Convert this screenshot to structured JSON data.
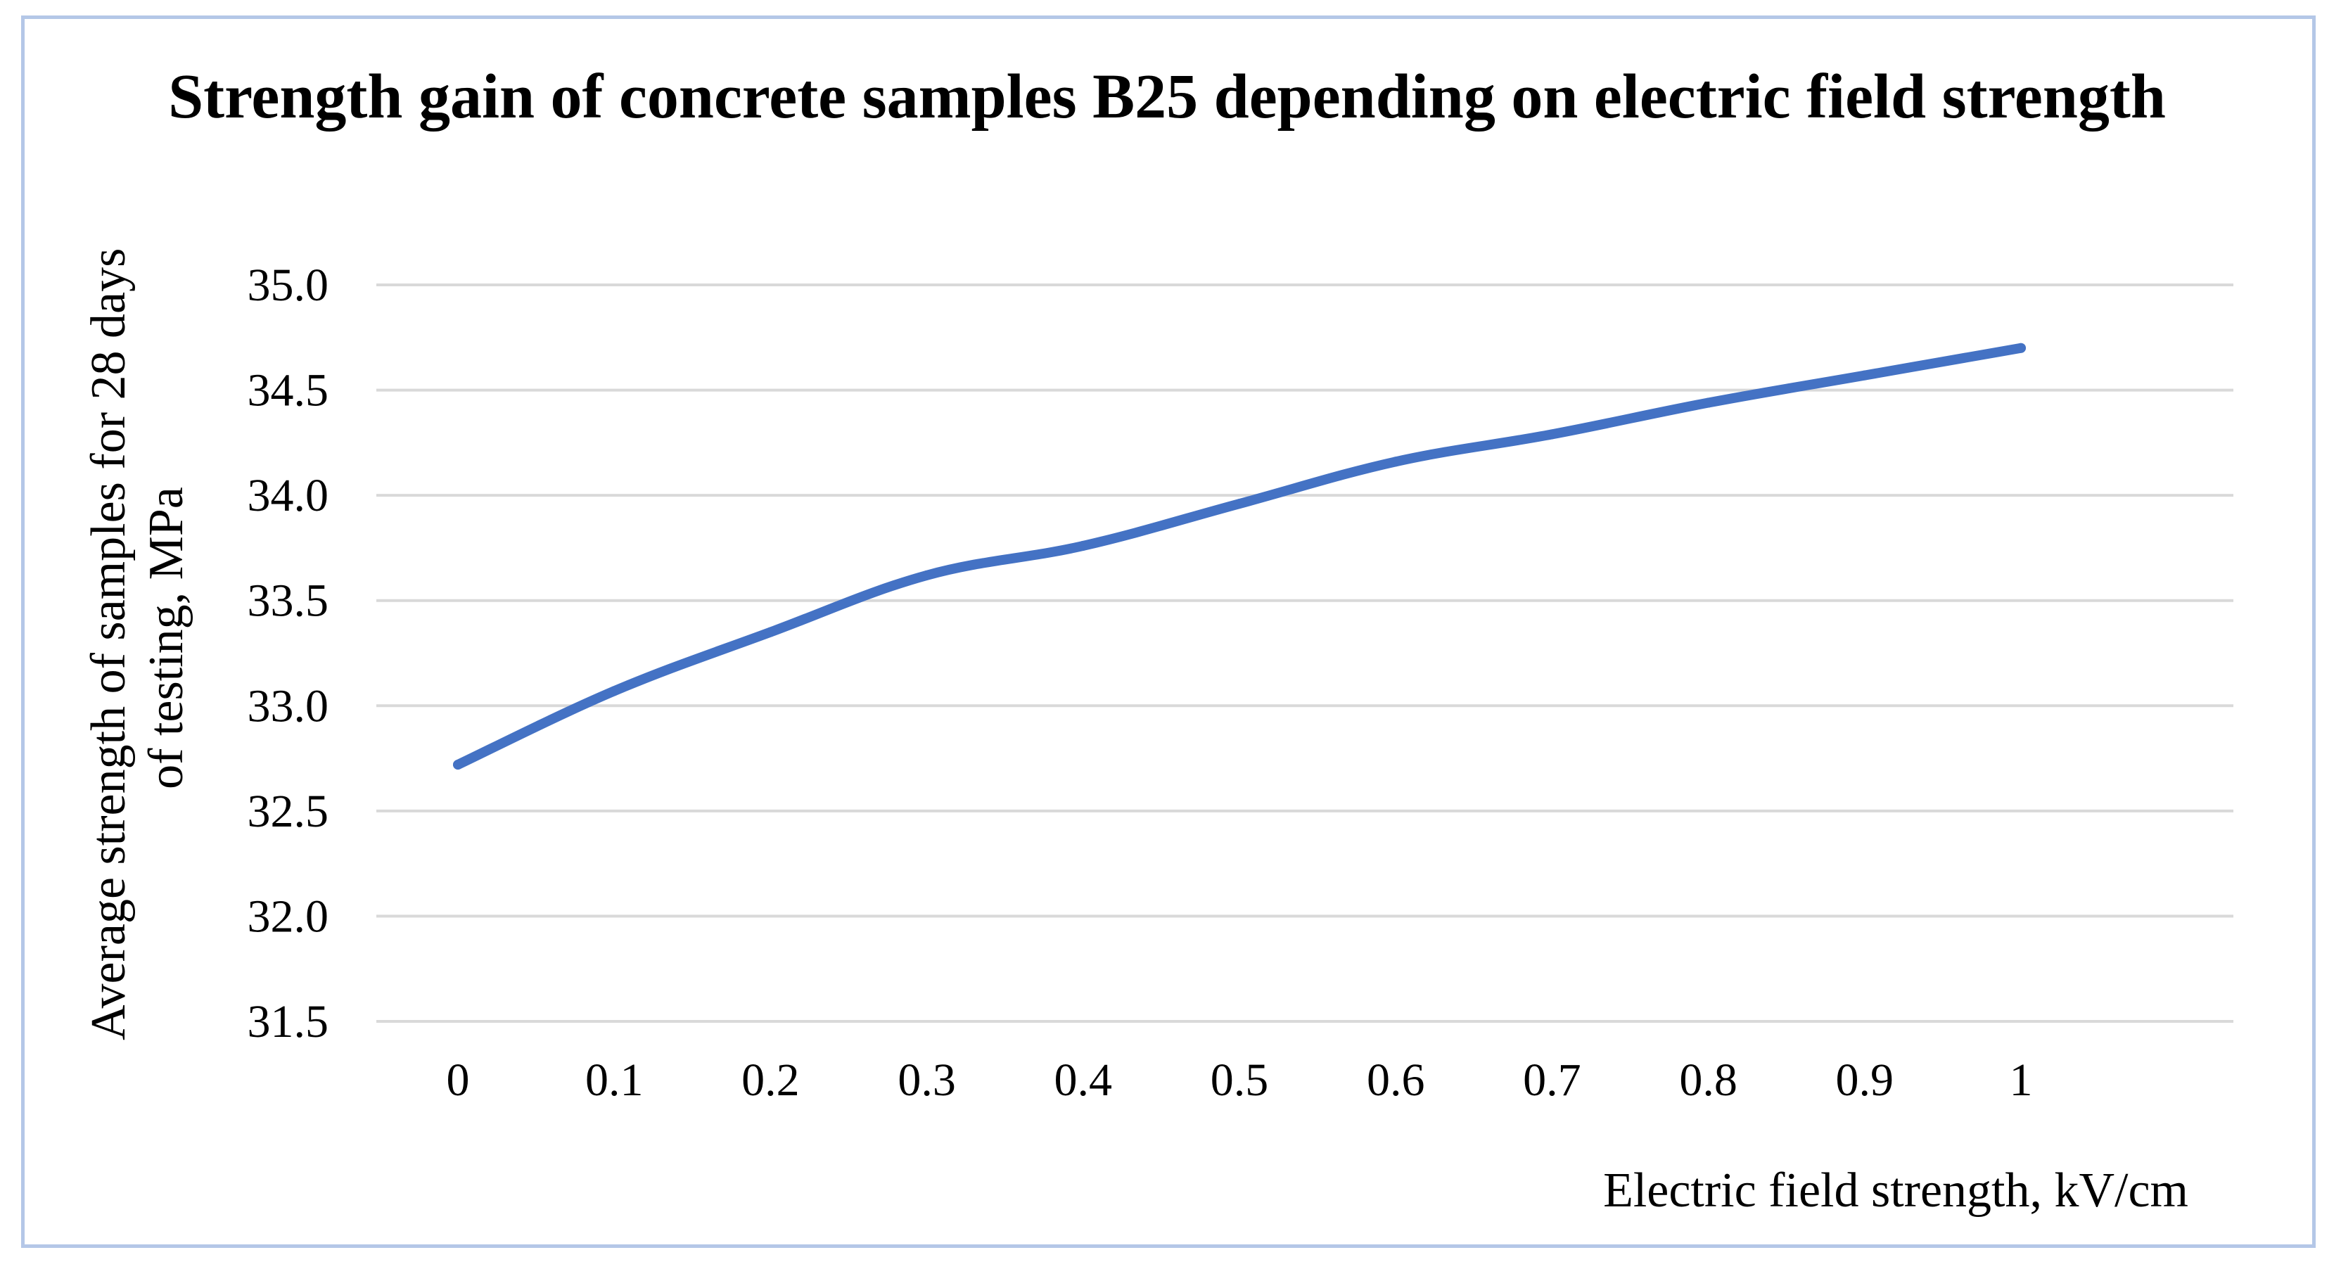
{
  "chart_data": {
    "type": "line",
    "title": "Strength gain of concrete samples B25 depending on electric field strength",
    "xlabel": "Electric field strength, kV/cm",
    "ylabel_lines": [
      "Average strength of samples for 28 days",
      "of testing, MPa"
    ],
    "categories": [
      "0",
      "0.1",
      "0.2",
      "0.3",
      "0.4",
      "0.5",
      "0.6",
      "0.7",
      "0.8",
      "0.9",
      "1"
    ],
    "x": [
      0,
      0.1,
      0.2,
      0.3,
      0.4,
      0.5,
      0.6,
      0.7,
      0.8,
      0.9,
      1.0
    ],
    "series": [
      {
        "name": "Average strength",
        "values": [
          32.72,
          33.07,
          33.35,
          33.62,
          33.76,
          33.96,
          34.16,
          34.29,
          34.44,
          34.57,
          34.7
        ],
        "color": "#4472c4"
      }
    ],
    "ylim": [
      31.5,
      35.0
    ],
    "yticks": [
      "31.5",
      "32.0",
      "32.5",
      "33.0",
      "33.5",
      "34.0",
      "34.5",
      "35.0"
    ],
    "grid": true,
    "legend": "none"
  },
  "colors": {
    "border": "#b4c7e7",
    "grid": "#d9d9d9",
    "line": "#4472c4"
  }
}
